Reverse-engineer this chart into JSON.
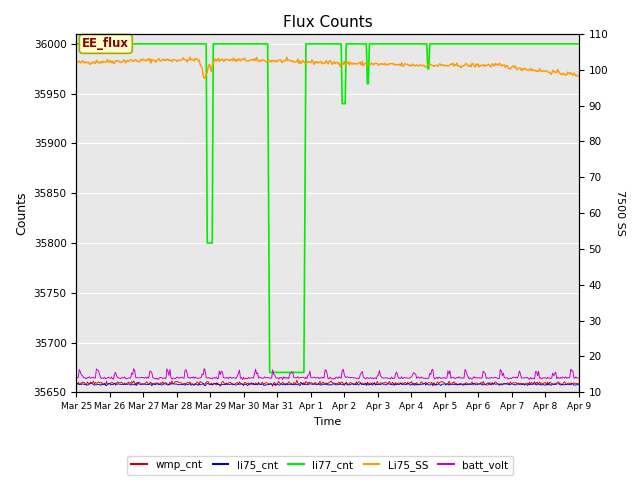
{
  "title": "Flux Counts",
  "xlabel": "Time",
  "ylabel_left": "Counts",
  "ylabel_right": "7500 SS",
  "ylim_left": [
    35650,
    36010
  ],
  "ylim_right": [
    10,
    110
  ],
  "background_color": "#e8e8e8",
  "legend_entries": [
    "wmp_cnt",
    "li75_cnt",
    "li77_cnt",
    "Li75_SS",
    "batt_volt"
  ],
  "legend_colors": [
    "#cc0000",
    "#0000cc",
    "#00ee00",
    "#ff9900",
    "#cc00cc"
  ],
  "annotation_text": "EE_flux",
  "annotation_box_color": "#ffffcc",
  "annotation_box_edge": "#aaa800",
  "annotation_text_color": "#880000",
  "x_tick_labels": [
    "Mar 25",
    "Mar 26",
    "Mar 27",
    "Mar 28",
    "Mar 29",
    "Mar 30",
    "Mar 31",
    "Apr 1",
    "Apr 2",
    "Apr 3",
    "Apr 4",
    "Apr 5",
    "Apr 6",
    "Apr 7",
    "Apr 8",
    "Apr 9"
  ],
  "yticks_left": [
    35650,
    35700,
    35750,
    35800,
    35850,
    35900,
    35950,
    36000
  ],
  "yticks_right": [
    10,
    20,
    30,
    40,
    50,
    60,
    70,
    80,
    90,
    100,
    110
  ],
  "n_points": 500,
  "figsize": [
    6.4,
    4.8
  ],
  "dpi": 100
}
